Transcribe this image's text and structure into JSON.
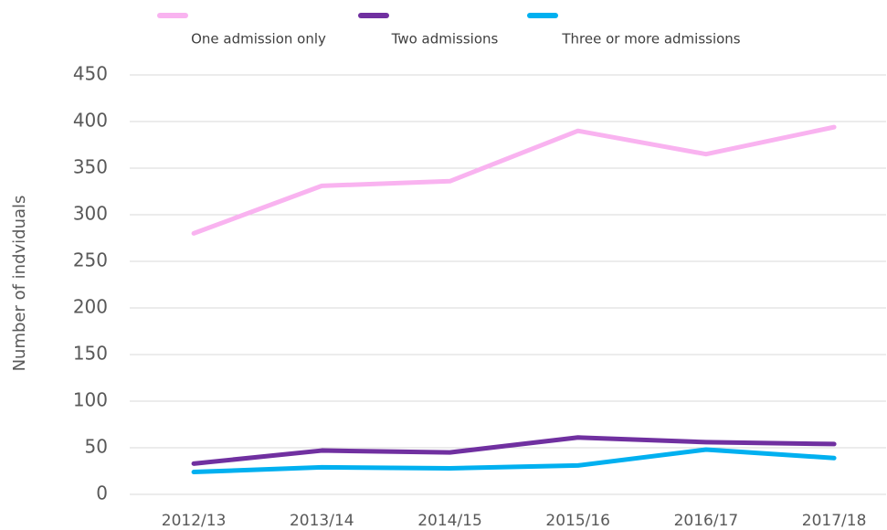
{
  "chart_data": {
    "type": "line",
    "y_label": "Number of indviduals",
    "categories": [
      "2012/13",
      "2013/14",
      "2014/15",
      "2015/16",
      "2016/17",
      "2017/18"
    ],
    "series": [
      {
        "name": "One admission only",
        "color": "#f9b3f0",
        "values": [
          280,
          331,
          336,
          390,
          365,
          394
        ]
      },
      {
        "name": "Two admissions",
        "color": "#7030a0",
        "values": [
          33,
          47,
          45,
          61,
          56,
          54
        ]
      },
      {
        "name": "Three or more admissions",
        "color": "#00b0f0",
        "values": [
          24,
          29,
          28,
          31,
          48,
          39
        ]
      }
    ],
    "ylim": [
      0,
      450
    ],
    "yticks": [
      0,
      50,
      100,
      150,
      200,
      250,
      300,
      350,
      400,
      450
    ],
    "grid": true
  }
}
